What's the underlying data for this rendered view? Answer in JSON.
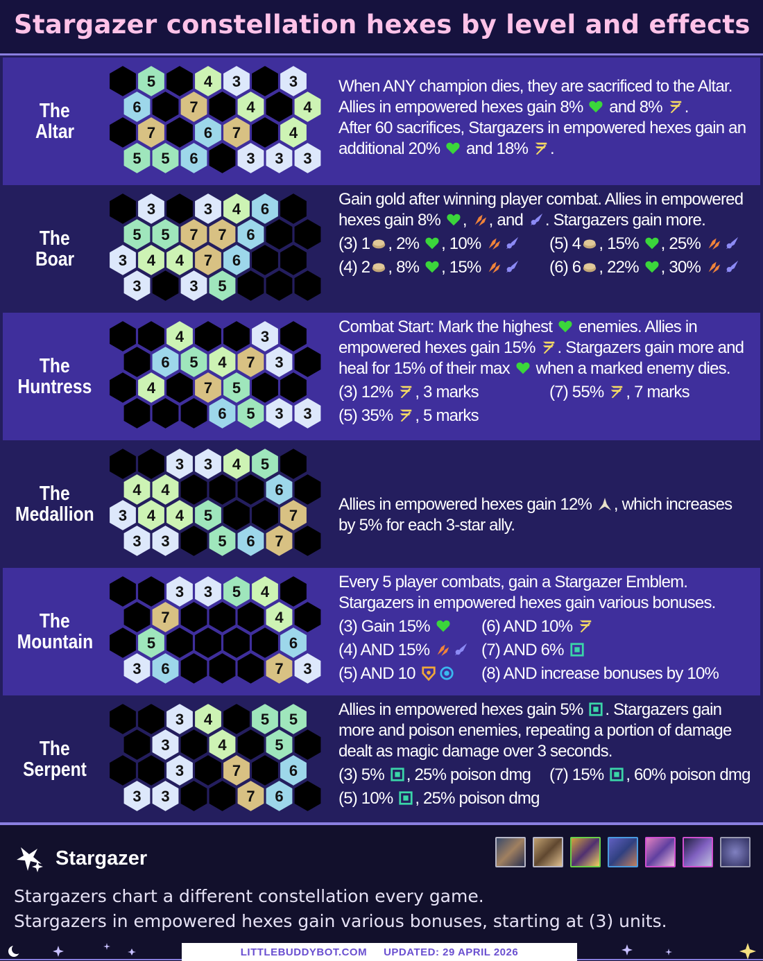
{
  "title": "Stargazer constellation hexes by level and effects",
  "colors": {
    "3": "#dde8fb",
    "4": "#cdf3b4",
    "5": "#9fe6bc",
    "6": "#9dd7ea",
    "7": "#d8c183",
    "empty": "#000000"
  },
  "rows": [
    {
      "name_1": "The",
      "name_2": "Altar",
      "grid": [
        [
          "-",
          "5",
          "-",
          "4",
          "3",
          "-",
          "3"
        ],
        [
          "6",
          "-",
          "7",
          "-",
          "4",
          "-",
          "4"
        ],
        [
          "-",
          "7",
          "-",
          "6",
          "7",
          "-",
          "4"
        ],
        [
          "5",
          "5",
          "6",
          "-",
          "3",
          "3",
          "3"
        ]
      ],
      "lines": [
        "When ANY champion dies, they are sacrificed to the Altar.",
        "Allies in empowered hexes gain 8% [health] and 8% [ad].",
        "After 60 sacrifices, Stargazers in empowered hexes gain an",
        "additional 20% [health] and 18% [ad]."
      ],
      "levels": []
    },
    {
      "name_1": "The",
      "name_2": "Boar",
      "grid": [
        [
          "-",
          "3",
          "-",
          "3",
          "4",
          "6",
          "-"
        ],
        [
          "5",
          "5",
          "7",
          "7",
          "6",
          "-",
          "-"
        ],
        [
          "3",
          "4",
          "4",
          "7",
          "6",
          "-",
          "-"
        ],
        [
          "3",
          "-",
          "3",
          "5",
          "-",
          "-",
          "-"
        ]
      ],
      "lines": [
        "Gain gold after winning player combat. Allies in empowered",
        "hexes gain 8% [health], [as], and [ap]. Stargazers gain more."
      ],
      "levels": [
        {
          "text": "(3) 1[gold], 2% [health], 10% [as][ap]",
          "col": 0,
          "line": 0
        },
        {
          "text": "(5) 4[gold], 15% [health], 25% [as][ap]",
          "col": 1,
          "line": 0
        },
        {
          "text": "(4) 2[gold], 8% [health], 15% [as][ap]",
          "col": 0,
          "line": 1
        },
        {
          "text": "(6) 6[gold], 22% [health], 30% [as][ap]",
          "col": 1,
          "line": 1
        }
      ]
    },
    {
      "name_1": "The",
      "name_2": "Huntress",
      "grid": [
        [
          "-",
          "-",
          "4",
          "-",
          "-",
          "3",
          "-"
        ],
        [
          "-",
          "6",
          "5",
          "4",
          "7",
          "3",
          "-"
        ],
        [
          "-",
          "4",
          "-",
          "7",
          "5",
          "-",
          "-"
        ],
        [
          "-",
          "-",
          "-",
          "6",
          "5",
          "3",
          "3"
        ]
      ],
      "lines": [
        "Combat Start: Mark the highest [health] enemies. Allies in",
        "empowered hexes gain 15% [ad]. Stargazers gain more and",
        "heal for 15% of their max [health] when a marked enemy dies."
      ],
      "levels": [
        {
          "text": "(3) 12% [ad], 3 marks",
          "col": 0,
          "line": 0
        },
        {
          "text": "(7) 55% [ad], 7 marks",
          "col": 1,
          "line": 0
        },
        {
          "text": "(5) 35% [ad], 5 marks",
          "col": 0,
          "line": 1
        }
      ]
    },
    {
      "name_1": "The",
      "name_2": "Medallion",
      "grid": [
        [
          "-",
          "-",
          "3",
          "3",
          "4",
          "5",
          "-"
        ],
        [
          "4",
          "4",
          "-",
          "-",
          "-",
          "6",
          "-"
        ],
        [
          "3",
          "4",
          "4",
          "5",
          "-",
          "-",
          "7"
        ],
        [
          "3",
          "3",
          "-",
          "5",
          "6",
          "7",
          "-"
        ]
      ],
      "lines": [
        "Allies in empowered hexes gain 12% [xp], which increases",
        "by 5% for each 3-star ally."
      ],
      "levels": []
    },
    {
      "name_1": "The",
      "name_2": "Mountain",
      "grid": [
        [
          "-",
          "-",
          "3",
          "3",
          "5",
          "4",
          "-"
        ],
        [
          "-",
          "7",
          "-",
          "-",
          "-",
          "4",
          "-"
        ],
        [
          "-",
          "5",
          "-",
          "-",
          "-",
          "-",
          "6"
        ],
        [
          "3",
          "6",
          "-",
          "-",
          "-",
          "7",
          "3"
        ]
      ],
      "lines": [
        "Every 5 player combats, gain a Stargazer Emblem.",
        "Stargazers in empowered hexes gain various bonuses."
      ],
      "levels": [
        {
          "text": "(3) Gain 15% [health]",
          "col": 0,
          "line": 0
        },
        {
          "text": "(6) AND 10% [ad]",
          "col": 1,
          "line": 0
        },
        {
          "text": "(4) AND 15% [as][ap]",
          "col": 0,
          "line": 1
        },
        {
          "text": "(7) AND 6% [omni]",
          "col": 1,
          "line": 1
        },
        {
          "text": "(5) AND 10 [armor][mr]",
          "col": 0,
          "line": 2
        },
        {
          "text": "(8) AND increase bonuses by 10%",
          "col": 1,
          "line": 2
        }
      ]
    },
    {
      "name_1": "The",
      "name_2": "Serpent",
      "grid": [
        [
          "-",
          "-",
          "3",
          "4",
          "-",
          "5",
          "5"
        ],
        [
          "-",
          "3",
          "-",
          "4",
          "-",
          "5",
          "-"
        ],
        [
          "-",
          "-",
          "3",
          "-",
          "7",
          "-",
          "6"
        ],
        [
          "3",
          "3",
          "-",
          "-",
          "7",
          "6",
          "-"
        ]
      ],
      "lines": [
        "Allies in empowered hexes gain 5% [omni]. Stargazers gain",
        "more and poison enemies, repeating a portion of damage",
        "dealt as magic damage over 3 seconds."
      ],
      "levels": [
        {
          "text": "(3) 5% [omni], 25% poison dmg",
          "col": 0,
          "line": 0
        },
        {
          "text": "(7) 15% [omni], 60% poison dmg",
          "col": 1,
          "line": 0
        },
        {
          "text": "(5) 10% [omni], 25% poison dmg",
          "col": 0,
          "line": 1
        }
      ]
    }
  ],
  "footer": {
    "trait_name": "Stargazer",
    "desc_1": "Stargazers chart a different constellation every game.",
    "desc_2": "Stargazers in empowered hexes gain various bonuses, starting at (3) units.",
    "site": "LITTLEBUDDYBOT.COM",
    "updated": "UPDATED: 29 APRIL 2026"
  },
  "icons": {
    "health": "heart-icon",
    "ad": "attack-damage-icon",
    "as": "attack-speed-icon",
    "ap": "ability-power-icon",
    "gold": "gold-icon",
    "xp": "crit-icon",
    "omni": "omnivamp-icon",
    "armor": "armor-icon",
    "mr": "magic-resist-icon"
  }
}
